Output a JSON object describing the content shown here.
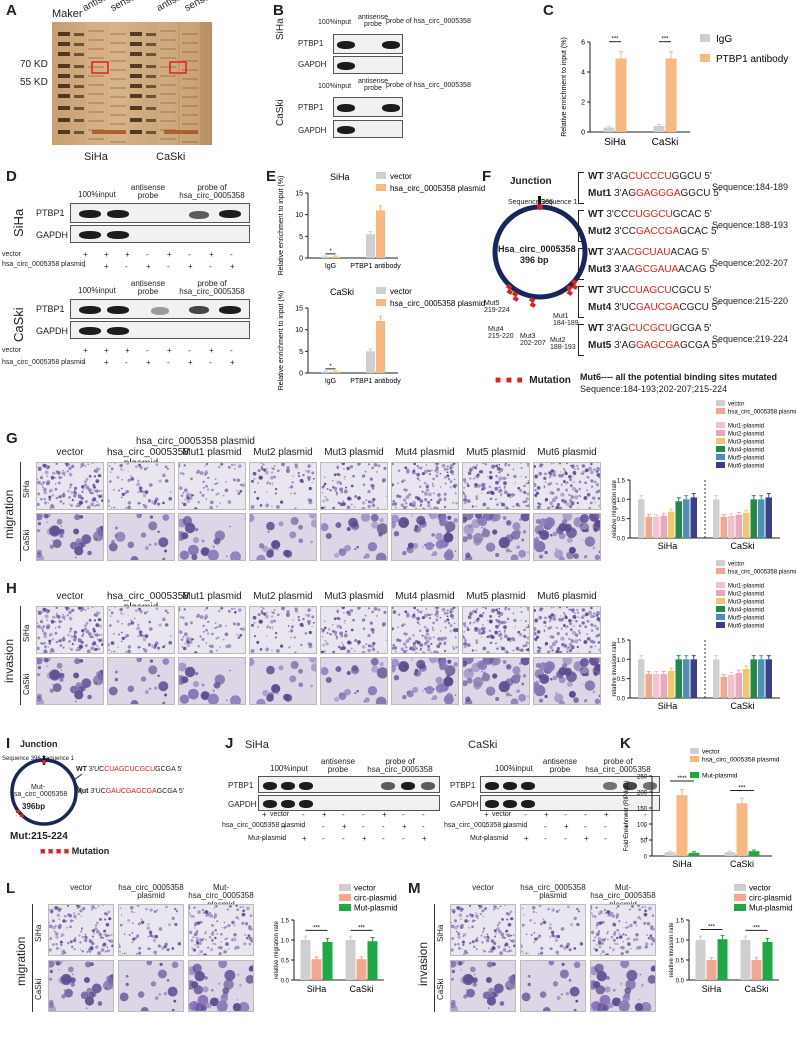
{
  "colors": {
    "vector": "#cfcfcf",
    "circ": "#f7b980",
    "circ_salmon": "#f4a690",
    "mut1": "#f1c3cf",
    "mut2": "#eaa7ba",
    "mut3": "#eec86a",
    "mut4": "#1f8a4c",
    "mut5": "#4f8fb6",
    "mut6": "#3a3f86",
    "gel_bg": "#c9a77b",
    "mutation": "#e0201b",
    "green": "#1fa846"
  },
  "panels": {
    "A": "A",
    "B": "B",
    "C": "C",
    "D": "D",
    "E": "E",
    "F": "F",
    "G": "G",
    "H": "H",
    "I": "I",
    "J": "J",
    "K": "K",
    "L": "L",
    "M": "M"
  },
  "A": {
    "maker": "Maker",
    "antisense": "antisense",
    "sense": "sense",
    "kd70": "70 KD",
    "kd55": "55 KD",
    "siha": "SiHa",
    "caski": "CaSki"
  },
  "B": {
    "input": "100%input",
    "antisense": "antisense probe",
    "probe": "probe of hsa_circ_0005358",
    "siha": "SiHa",
    "caski": "CaSki",
    "ptbp1": "PTBP1",
    "gapdh": "GAPDH"
  },
  "C": {
    "ylabel": "Relative enrichment to input (%)",
    "legend_igg": "IgG",
    "legend_ab": "PTBP1 antibody",
    "stars": "***"
  },
  "D": {
    "input": "100%input",
    "antisense": "antisense probe",
    "probe": "probe of hsa_circ_0005358",
    "siha": "SiHa",
    "caski": "CaSki",
    "ptbp1": "PTBP1",
    "gapdh": "GAPDH",
    "row1": "vector",
    "row2": "hsa_circ_0005358 plasmid",
    "plus": "+",
    "minus": "-"
  },
  "E": {
    "siha": "SiHa",
    "caski": "CaSki",
    "ylabel": "Relative enrichment to input (%)",
    "legend_vector": "vector",
    "legend_plasmid": "hsa_circ_0005358 plasmid",
    "igg": "IgG",
    "ab": "PTBP1 antibody",
    "star": "*"
  },
  "F": {
    "junction": "Junction",
    "seq396": "Sequence 396",
    "seq1": "Sequence 1",
    "circ_name": "Hsa_circ_0005358",
    "circ_len": "396 bp",
    "mutation": "Mutation",
    "mut6": "Mut6---- all the potential binding sites mutated",
    "mut6_seq": "Sequence:184-193;202-207;215-224",
    "sites": [
      {
        "wt": "WT",
        "wt_pre": "3'AG",
        "wt_red": "CUCCCU",
        "wt_post": "GGCU 5'",
        "mut": "Mut1",
        "mut_pre": "3'AG",
        "mut_red": "GAGGGA",
        "mut_post": "GGCU 5'",
        "seq": "Sequence:184-189"
      },
      {
        "wt": "WT",
        "wt_pre": "3'CC",
        "wt_red": "CUGGCU",
        "wt_post": "GCAC 5'",
        "mut": "Mut2",
        "mut_pre": "3'CC",
        "mut_red": "GACCGA",
        "mut_post": "GCAC 5'",
        "seq": "Sequence:188-193"
      },
      {
        "wt": "WT",
        "wt_pre": "3'AA",
        "wt_red": "CGCUAU",
        "wt_post": "ACAG 5'",
        "mut": "Mut3",
        "mut_pre": "3'AA",
        "mut_red": "GCGAUA",
        "mut_post": "ACAG 5'",
        "seq": "Sequence:202-207"
      },
      {
        "wt": "WT",
        "wt_pre": "3'UC",
        "wt_red": "CUAGCU",
        "wt_post": "CGCU 5'",
        "mut": "Mut4",
        "mut_pre": "3'UC",
        "mut_red": "GAUCGA",
        "mut_post": "CGCU 5'",
        "seq": "Sequence:215-220"
      },
      {
        "wt": "WT",
        "wt_pre": "3'AG",
        "wt_red": "CUCGCU",
        "wt_post": "GCGA 5'",
        "mut": "Mut5",
        "mut_pre": "3'AG",
        "mut_red": "GAGCGA",
        "mut_post": "GCGA 5'",
        "seq": "Sequence:219-224"
      }
    ],
    "marks": {
      "mut1": "Mut1 184-189",
      "mut2": "Mut2 188-193",
      "mut3": "Mut3 202-207",
      "mut4": "Mut4 215-220",
      "mut5": "Mut5 219-224"
    }
  },
  "G": {
    "side": "migration",
    "siha": "SiHa",
    "caski": "CaSki",
    "ylabel": "relative migration rate",
    "cols": [
      "vector",
      "hsa_circ_0005358 plasmid",
      "Mut1 plasmid",
      "Mut2 plasmid",
      "Mut3 plasmid",
      "Mut4 plasmid",
      "Mut5 plasmid",
      "Mut6 plasmid"
    ]
  },
  "H": {
    "side": "invasion",
    "siha": "SiHa",
    "caski": "CaSki",
    "ylabel": "relative invasion rate",
    "cols": [
      "vector",
      "hsa_circ_0005358 plasmid",
      "Mut1 plasmid",
      "Mut2 plasmid",
      "Mut3 plasmid",
      "Mut4 plasmid",
      "Mut5 plasmid",
      "Mut6 plasmid"
    ]
  },
  "legendGH": [
    "vector",
    "hsa_circ_0005358 plasmid",
    "Mut1-plasmid",
    "Mut2-plasmid",
    "Mut3-plasmid",
    "Mut4-plasmid",
    "Mut5-plasmid",
    "Mut6-plasmid"
  ],
  "I": {
    "junction": "Junction",
    "seq396": "Sequence 396",
    "seq1": "Sequence 1",
    "circ_name": "Mut-hsa_circ_0005358",
    "circ_len": "396bp",
    "wt": "WT",
    "wt_pre": "3'UC",
    "wt_red": "CUAGCUCGCU",
    "wt_post": "GCGA 5'",
    "mut": "Mut",
    "mut_pre": "3'UC",
    "mut_red": "GAUCGAGCGA",
    "mut_post": "GCGA 5'",
    "mut_site": "Mut:215-224",
    "mutation": "Mutation"
  },
  "J": {
    "siha": "SiHa",
    "caski": "CaSki",
    "input": "100%input",
    "antisense": "antisense probe",
    "probe": "probe of hsa_circ_0005358",
    "ptbp1": "PTBP1",
    "gapdh": "GAPDH",
    "row1": "vector",
    "row2": "hsa_circ_0005358 plasmid",
    "row3": "Mut-plasmid"
  },
  "K": {
    "ylabel": "Fold Enrichment (RIP/IgG)",
    "legend": [
      "vector",
      "hsa_circ_0005358 plasmid",
      "Mut-plasmid"
    ],
    "siha": "SiHa",
    "caski": "CaSki"
  },
  "L": {
    "side": "migration",
    "siha": "SiHa",
    "caski": "CaSki",
    "cols": [
      "vector",
      "hsa_circ_0005358 plasmid",
      "Mut-hsa_circ_0005358 plasmid"
    ],
    "ylabel": "relative migration rate",
    "legend": [
      "vector",
      "circ-plasmid",
      "Mut-plasmid"
    ]
  },
  "M": {
    "side": "invasion",
    "siha": "SiHa",
    "caski": "CaSki",
    "cols": [
      "vector",
      "hsa_circ_0005358 plasmid",
      "Mut-hsa_circ_0005358 plasmid"
    ],
    "ylabel": "relative invasion rate",
    "legend": [
      "vector",
      "circ-plasmid",
      "Mut-plasmid"
    ]
  },
  "chart_data": [
    {
      "panel": "C",
      "type": "bar",
      "categories": [
        "SiHa",
        "CaSki"
      ],
      "series": [
        {
          "name": "IgG",
          "values": [
            0.3,
            0.4
          ]
        },
        {
          "name": "PTBP1 antibody",
          "values": [
            4.9,
            4.9
          ]
        }
      ],
      "ylabel": "Relative enrichment to input (%)",
      "ylim": [
        0,
        6
      ],
      "yticks": [
        0,
        2,
        4,
        6
      ],
      "annotations": [
        "***",
        "***"
      ]
    },
    {
      "panel": "E-SiHa",
      "type": "bar",
      "categories": [
        "IgG",
        "PTBP1 antibody"
      ],
      "series": [
        {
          "name": "vector",
          "values": [
            0.3,
            5.5
          ]
        },
        {
          "name": "hsa_circ_0005358 plasmid",
          "values": [
            0.3,
            11
          ]
        }
      ],
      "ylim": [
        0,
        15
      ],
      "yticks": [
        0,
        5,
        10,
        15
      ],
      "annotations": [
        "*"
      ]
    },
    {
      "panel": "E-CaSki",
      "type": "bar",
      "categories": [
        "IgG",
        "PTBP1 antibody"
      ],
      "series": [
        {
          "name": "vector",
          "values": [
            0.3,
            5
          ]
        },
        {
          "name": "hsa_circ_0005358 plasmid",
          "values": [
            0.3,
            12
          ]
        }
      ],
      "ylim": [
        0,
        15
      ],
      "yticks": [
        0,
        5,
        10,
        15
      ],
      "annotations": [
        "*"
      ]
    },
    {
      "panel": "G",
      "type": "bar",
      "categories": [
        "SiHa",
        "CaSki"
      ],
      "series": [
        {
          "name": "vector",
          "values": [
            1.0,
            1.0
          ]
        },
        {
          "name": "hsa_circ_0005358 plasmid",
          "values": [
            0.55,
            0.55
          ]
        },
        {
          "name": "Mut1-plasmid",
          "values": [
            0.55,
            0.57
          ]
        },
        {
          "name": "Mut2-plasmid",
          "values": [
            0.58,
            0.6
          ]
        },
        {
          "name": "Mut3-plasmid",
          "values": [
            0.68,
            0.65
          ]
        },
        {
          "name": "Mut4-plasmid",
          "values": [
            0.95,
            1.0
          ]
        },
        {
          "name": "Mut5-plasmid",
          "values": [
            1.0,
            1.0
          ]
        },
        {
          "name": "Mut6-plasmid",
          "values": [
            1.05,
            1.05
          ]
        }
      ],
      "ylabel": "relative migration rate",
      "ylim": [
        0,
        1.5
      ],
      "yticks": [
        0.0,
        0.5,
        1.0,
        1.5
      ]
    },
    {
      "panel": "H",
      "type": "bar",
      "categories": [
        "SiHa",
        "CaSki"
      ],
      "series": [
        {
          "name": "vector",
          "values": [
            1.0,
            1.0
          ]
        },
        {
          "name": "hsa_circ_0005358 plasmid",
          "values": [
            0.62,
            0.55
          ]
        },
        {
          "name": "Mut1-plasmid",
          "values": [
            0.62,
            0.6
          ]
        },
        {
          "name": "Mut2-plasmid",
          "values": [
            0.62,
            0.65
          ]
        },
        {
          "name": "Mut3-plasmid",
          "values": [
            0.7,
            0.75
          ]
        },
        {
          "name": "Mut4-plasmid",
          "values": [
            1.0,
            1.0
          ]
        },
        {
          "name": "Mut5-plasmid",
          "values": [
            1.0,
            1.0
          ]
        },
        {
          "name": "Mut6-plasmid",
          "values": [
            1.0,
            1.0
          ]
        }
      ],
      "ylabel": "relative invasion rate",
      "ylim": [
        0,
        1.5
      ],
      "yticks": [
        0.0,
        0.5,
        1.0,
        1.5
      ]
    },
    {
      "panel": "K",
      "type": "bar",
      "categories": [
        "SiHa",
        "CaSki"
      ],
      "series": [
        {
          "name": "vector",
          "values": [
            12,
            12
          ]
        },
        {
          "name": "hsa_circ_0005358 plasmid",
          "values": [
            190,
            165
          ]
        },
        {
          "name": "Mut-plasmid",
          "values": [
            10,
            15
          ]
        }
      ],
      "ylabel": "Fold Enrichment (RIP/IgG)",
      "ylim": [
        0,
        250
      ],
      "yticks": [
        0,
        50,
        100,
        150,
        200,
        250
      ],
      "annotations": [
        "****",
        "***"
      ]
    },
    {
      "panel": "L",
      "type": "bar",
      "categories": [
        "SiHa",
        "CaSki"
      ],
      "series": [
        {
          "name": "vector",
          "values": [
            1.0,
            1.0
          ]
        },
        {
          "name": "circ-plasmid",
          "values": [
            0.52,
            0.52
          ]
        },
        {
          "name": "Mut-plasmid",
          "values": [
            0.95,
            0.97
          ]
        }
      ],
      "ylabel": "relative migration rate",
      "ylim": [
        0,
        1.5
      ],
      "yticks": [
        0.0,
        0.5,
        1.0,
        1.5
      ],
      "annotations": [
        "***",
        "***"
      ]
    },
    {
      "panel": "M",
      "type": "bar",
      "categories": [
        "SiHa",
        "CaSki"
      ],
      "series": [
        {
          "name": "vector",
          "values": [
            1.0,
            1.0
          ]
        },
        {
          "name": "circ-plasmid",
          "values": [
            0.5,
            0.5
          ]
        },
        {
          "name": "Mut-plasmid",
          "values": [
            1.02,
            0.95
          ]
        }
      ],
      "ylabel": "relative invasion rate",
      "ylim": [
        0,
        1.5
      ],
      "yticks": [
        0.0,
        0.5,
        1.0,
        1.5
      ],
      "annotations": [
        "***",
        "***"
      ]
    }
  ]
}
